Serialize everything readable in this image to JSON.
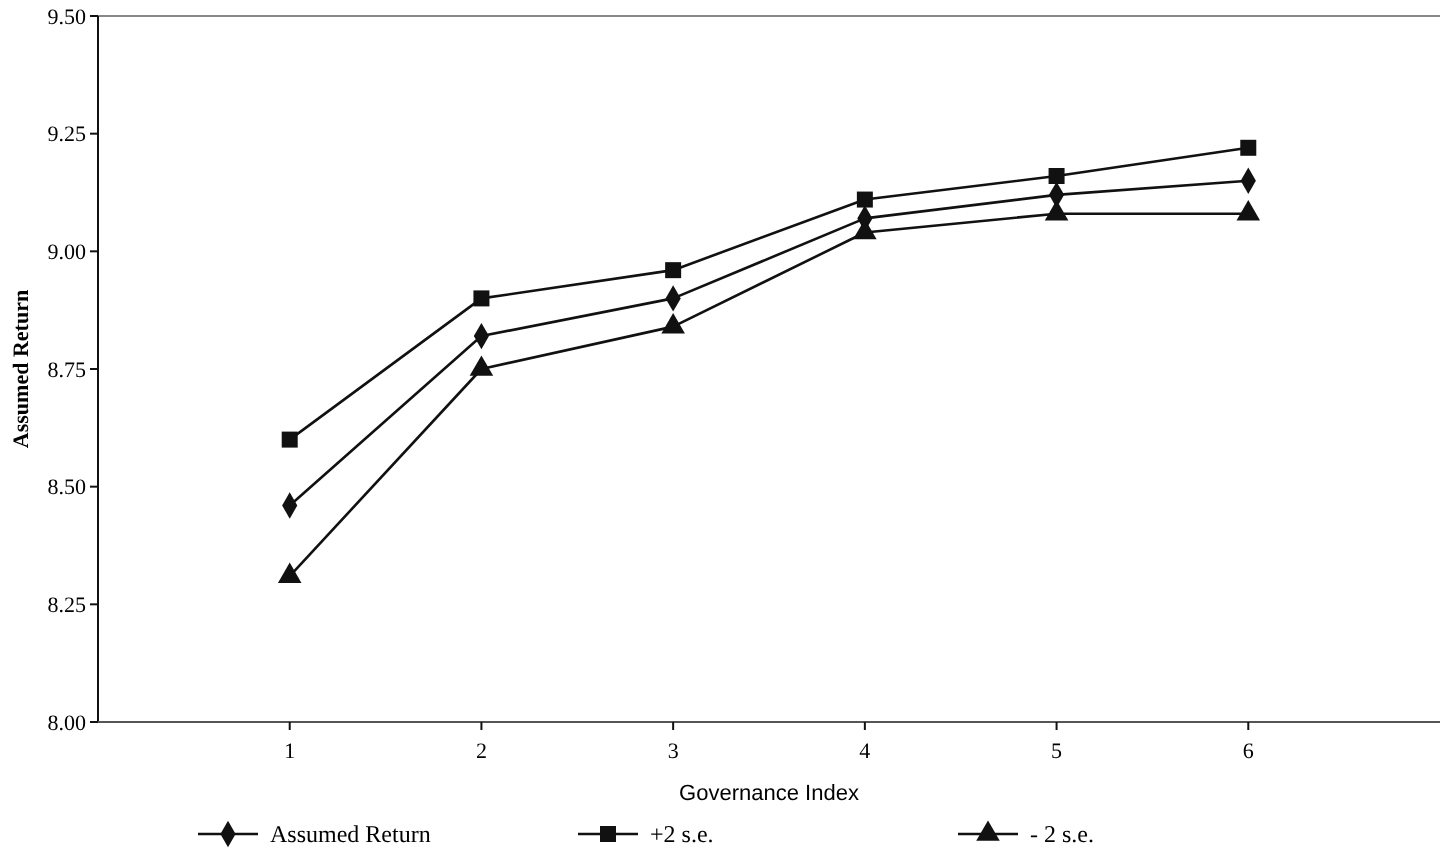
{
  "chart_data": {
    "type": "line",
    "xlabel": "Governance Index",
    "ylabel": "Assumed Return",
    "categories": [
      "1",
      "2",
      "3",
      "4",
      "5",
      "6"
    ],
    "ylim": [
      8.0,
      9.5
    ],
    "yticks": [
      {
        "value": 8,
        "label": "8.00"
      },
      {
        "value": 8.25,
        "label": "8.25"
      },
      {
        "value": 8.5,
        "label": "8.50"
      },
      {
        "value": 8.75,
        "label": "8.75"
      },
      {
        "value": 9,
        "label": "9.00"
      },
      {
        "value": 9.25,
        "label": "9.25"
      },
      {
        "value": 9.5,
        "label": "9.50"
      }
    ],
    "grid": false,
    "legend": "bottom",
    "line_style": "solid",
    "series": [
      {
        "name": "Assumed Return",
        "color": "#111111",
        "marker": "diamond",
        "values": [
          8.46,
          8.82,
          8.9,
          9.07,
          9.12,
          9.15
        ]
      },
      {
        "name": "+2 s.e.",
        "color": "#111111",
        "marker": "square",
        "values": [
          8.6,
          8.9,
          8.96,
          9.11,
          9.16,
          9.22
        ]
      },
      {
        "name": "- 2 s.e.",
        "color": "#111111",
        "marker": "triangle",
        "values": [
          8.31,
          8.75,
          8.84,
          9.04,
          9.08,
          9.08
        ]
      }
    ]
  }
}
